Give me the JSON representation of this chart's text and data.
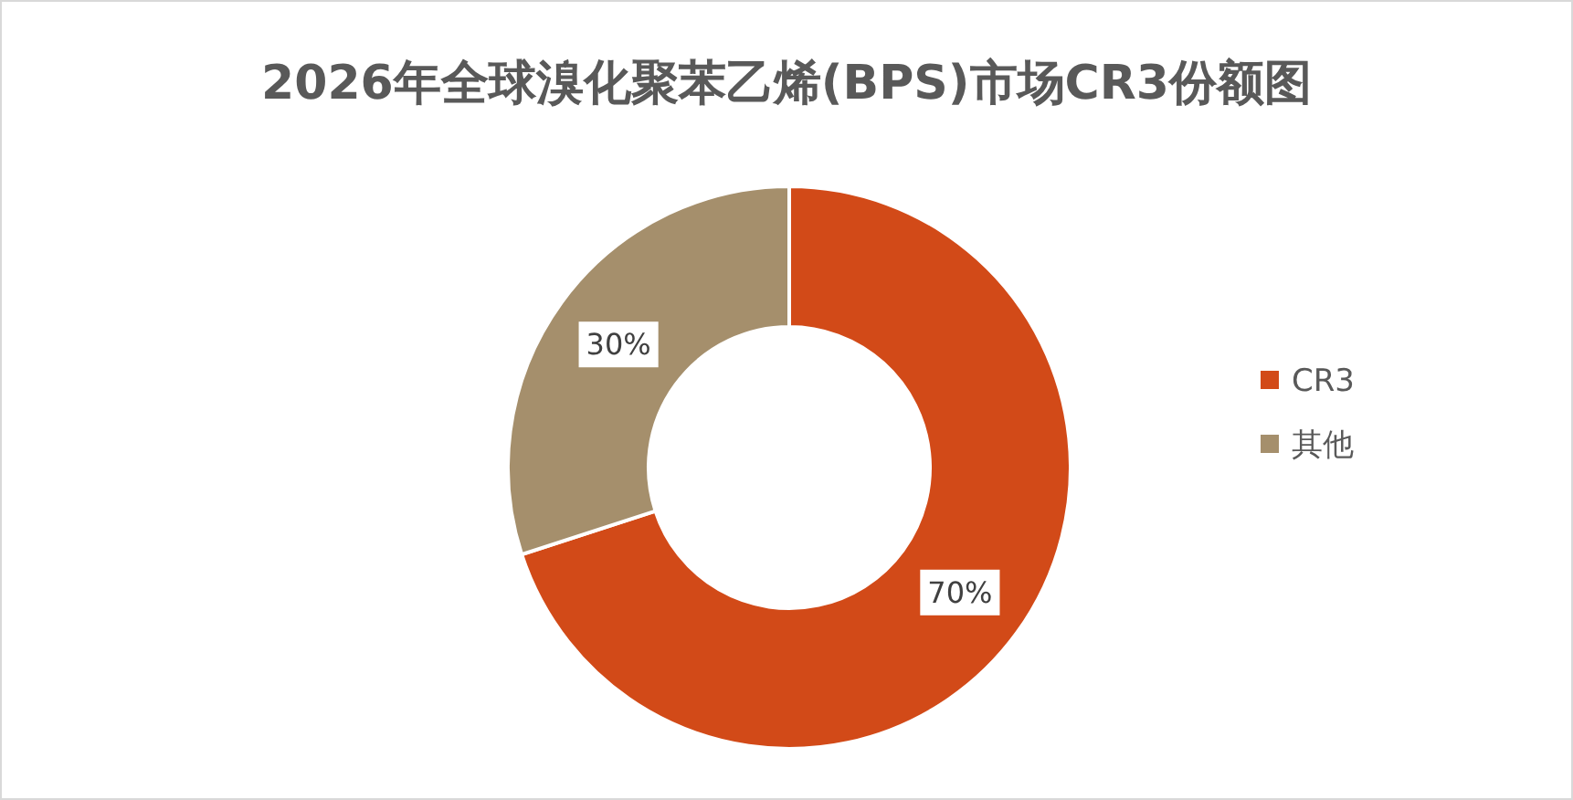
{
  "chart_data": {
    "type": "donut",
    "title": "2026年全球溴化聚苯乙烯(BPS)市场CR3份额图",
    "categories": [
      "CR3",
      "其他"
    ],
    "values": [
      70,
      30
    ],
    "colors": [
      "#d24a18",
      "#a58f6c"
    ],
    "value_labels": [
      "70%",
      "30%"
    ],
    "legend": "right"
  }
}
